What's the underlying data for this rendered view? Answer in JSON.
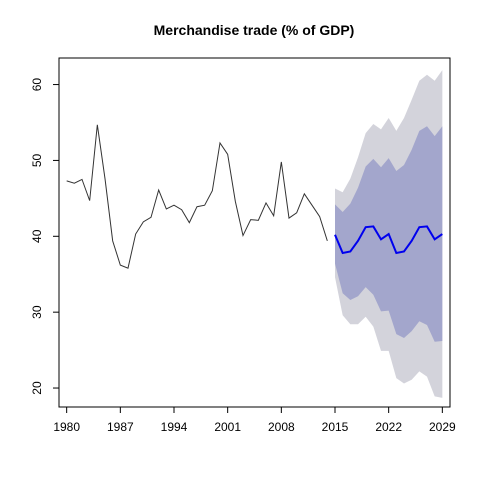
{
  "chart_data": {
    "type": "line",
    "title": "Merchandise trade (% of GDP)",
    "xlabel": "",
    "ylabel": "",
    "xlim": [
      1979,
      2030
    ],
    "ylim": [
      17.5,
      63.5
    ],
    "x_ticks": [
      1980,
      1987,
      1994,
      2001,
      2008,
      2015,
      2022,
      2029
    ],
    "y_ticks": [
      20,
      30,
      40,
      50,
      60
    ],
    "grid": false,
    "legend": "none",
    "colors": {
      "history": "#333333",
      "forecast": "#0000ee",
      "band_80": "#a3a6cc",
      "band_95": "#d3d3db"
    },
    "history": {
      "x": [
        1980,
        1981,
        1982,
        1983,
        1984,
        1985,
        1986,
        1987,
        1988,
        1989,
        1990,
        1991,
        1992,
        1993,
        1994,
        1995,
        1996,
        1997,
        1998,
        1999,
        2000,
        2001,
        2002,
        2003,
        2004,
        2005,
        2006,
        2007,
        2008,
        2009,
        2010,
        2011,
        2012,
        2013,
        2014
      ],
      "values": [
        47.3,
        47.0,
        47.5,
        44.7,
        54.7,
        47.6,
        39.4,
        36.2,
        35.8,
        40.3,
        41.9,
        42.5,
        46.1,
        43.6,
        44.1,
        43.5,
        41.8,
        43.9,
        44.1,
        46.0,
        52.3,
        50.8,
        44.6,
        40.1,
        42.2,
        42.1,
        44.4,
        42.7,
        49.8,
        42.4,
        43.1,
        45.6,
        44.1,
        42.6,
        39.4
      ]
    },
    "forecast": {
      "x": [
        2015,
        2016,
        2017,
        2018,
        2019,
        2020,
        2021,
        2022,
        2023,
        2024,
        2025,
        2026,
        2027,
        2028,
        2029
      ],
      "mean": [
        40.2,
        37.8,
        38.0,
        39.4,
        41.2,
        41.3,
        39.6,
        40.3,
        37.8,
        38.0,
        39.4,
        41.2,
        41.3,
        39.6,
        40.3
      ],
      "lo80": [
        36.4,
        32.5,
        31.6,
        32.1,
        33.3,
        32.3,
        30.1,
        30.2,
        27.1,
        26.6,
        27.5,
        28.8,
        28.3,
        26.1,
        26.2
      ],
      "hi80": [
        44.2,
        43.2,
        44.3,
        46.4,
        49.2,
        50.2,
        49.1,
        50.3,
        48.6,
        49.4,
        51.4,
        53.9,
        54.5,
        53.2,
        54.5
      ],
      "lo95": [
        34.6,
        29.6,
        28.4,
        28.4,
        29.4,
        28.1,
        24.9,
        24.9,
        21.3,
        20.6,
        21.1,
        22.2,
        21.5,
        18.9,
        18.7
      ],
      "hi95": [
        46.3,
        45.8,
        47.6,
        50.4,
        53.6,
        54.8,
        54.1,
        55.6,
        53.9,
        55.6,
        58.0,
        60.5,
        61.3,
        60.5,
        61.9
      ]
    }
  }
}
